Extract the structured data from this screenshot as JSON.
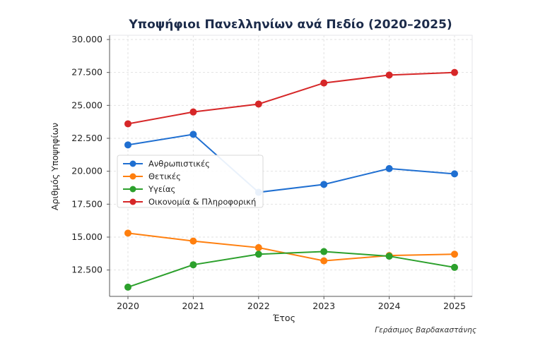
{
  "chart_data": {
    "type": "line",
    "title": "Υποψήφιοι Πανελληνίων ανά Πεδίο (2020–2025)",
    "xlabel": "Έτος",
    "ylabel": "Αριθμός Υποψηφίων",
    "credit": "Γεράσιμος Βαρδακαστάνης",
    "x": [
      "2020",
      "2021",
      "2022",
      "2023",
      "2024",
      "2025"
    ],
    "ylim": [
      10500,
      30000
    ],
    "yticks": [
      12500,
      15000,
      17500,
      20000,
      22500,
      25000,
      27500,
      30000
    ],
    "ytick_labels": [
      "12.500",
      "15.000",
      "17.500",
      "20.000",
      "22.500",
      "25.000",
      "27.500",
      "30.000"
    ],
    "grid": true,
    "legend_placement": "center-left",
    "series": [
      {
        "name": "Ανθρωπιστικές",
        "color": "#1f6fd1",
        "values": [
          22000,
          22800,
          18400,
          19000,
          20200,
          19800
        ]
      },
      {
        "name": "Θετικές",
        "color": "#ff7f0e",
        "values": [
          15300,
          14700,
          14200,
          13200,
          13600,
          13700
        ]
      },
      {
        "name": "Υγείας",
        "color": "#2ca02c",
        "values": [
          11200,
          12900,
          13700,
          13900,
          13550,
          12700
        ]
      },
      {
        "name": "Οικονομία & Πληροφορική",
        "color": "#d62728",
        "values": [
          23600,
          24500,
          25100,
          26700,
          27300,
          27500
        ]
      }
    ]
  }
}
